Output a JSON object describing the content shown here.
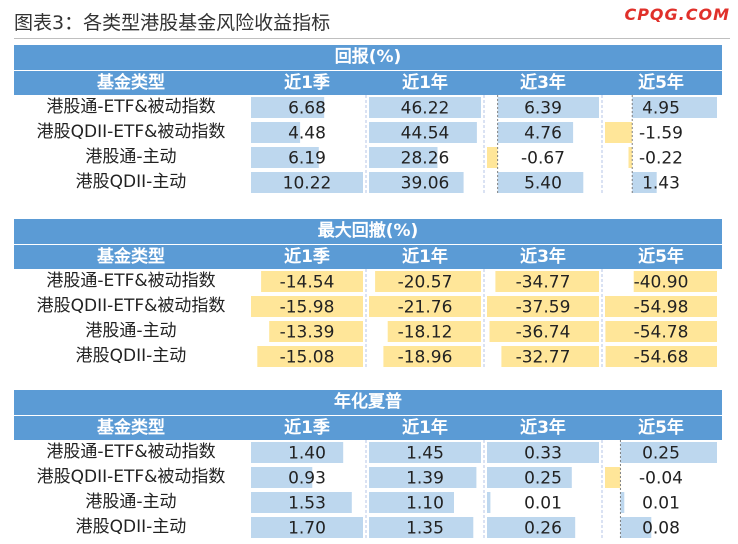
{
  "title": "图表3：各类型港股基金风险收益指标",
  "brand": "CPQG.COM",
  "colors": {
    "header": "#5b9bd5",
    "positive_bar": "#bdd7ee",
    "negative_bar": "#ffe699"
  },
  "chart_data": [
    {
      "type": "table",
      "title": "回报(%)",
      "row_header": "基金类型",
      "columns": [
        "近1季",
        "近1年",
        "近3年",
        "近5年"
      ],
      "rows": [
        "港股通-ETF&被动指数",
        "港股QDII-ETF&被动指数",
        "港股通-主动",
        "港股QDII-主动"
      ],
      "values": [
        [
          6.68,
          46.22,
          6.39,
          4.95
        ],
        [
          4.48,
          44.54,
          4.76,
          -1.59
        ],
        [
          6.19,
          28.26,
          -0.67,
          -0.22
        ],
        [
          10.22,
          39.06,
          5.4,
          1.43
        ]
      ],
      "labels": [
        [
          "6.68",
          "46.22",
          "6.39",
          "4.95"
        ],
        [
          "4.48",
          "44.54",
          "4.76",
          "-1.59"
        ],
        [
          "6.19",
          "28.26",
          "-0.67",
          "-0.22"
        ],
        [
          "10.22",
          "39.06",
          "5.40",
          "1.43"
        ]
      ]
    },
    {
      "type": "table",
      "title": "最大回撤(%)",
      "row_header": "基金类型",
      "columns": [
        "近1季",
        "近1年",
        "近3年",
        "近5年"
      ],
      "rows": [
        "港股通-ETF&被动指数",
        "港股QDII-ETF&被动指数",
        "港股通-主动",
        "港股QDII-主动"
      ],
      "values": [
        [
          -14.54,
          -20.57,
          -34.77,
          -40.9
        ],
        [
          -15.98,
          -21.76,
          -37.59,
          -54.98
        ],
        [
          -13.39,
          -18.12,
          -36.74,
          -54.78
        ],
        [
          -15.08,
          -18.96,
          -32.77,
          -54.68
        ]
      ],
      "labels": [
        [
          "-14.54",
          "-20.57",
          "-34.77",
          "-40.90"
        ],
        [
          "-15.98",
          "-21.76",
          "-37.59",
          "-54.98"
        ],
        [
          "-13.39",
          "-18.12",
          "-36.74",
          "-54.78"
        ],
        [
          "-15.08",
          "-18.96",
          "-32.77",
          "-54.68"
        ]
      ]
    },
    {
      "type": "table",
      "title": "年化夏普",
      "row_header": "基金类型",
      "columns": [
        "近1季",
        "近1年",
        "近3年",
        "近5年"
      ],
      "rows": [
        "港股通-ETF&被动指数",
        "港股QDII-ETF&被动指数",
        "港股通-主动",
        "港股QDII-主动"
      ],
      "values": [
        [
          1.4,
          1.45,
          0.33,
          0.25
        ],
        [
          0.93,
          1.39,
          0.25,
          -0.04
        ],
        [
          1.53,
          1.1,
          0.01,
          0.01
        ],
        [
          1.7,
          1.35,
          0.26,
          0.08
        ]
      ],
      "labels": [
        [
          "1.40",
          "1.45",
          "0.33",
          "0.25"
        ],
        [
          "0.93",
          "1.39",
          "0.25",
          "-0.04"
        ],
        [
          "1.53",
          "1.10",
          "0.01",
          "0.01"
        ],
        [
          "1.70",
          "1.35",
          "0.26",
          "0.08"
        ]
      ]
    }
  ]
}
